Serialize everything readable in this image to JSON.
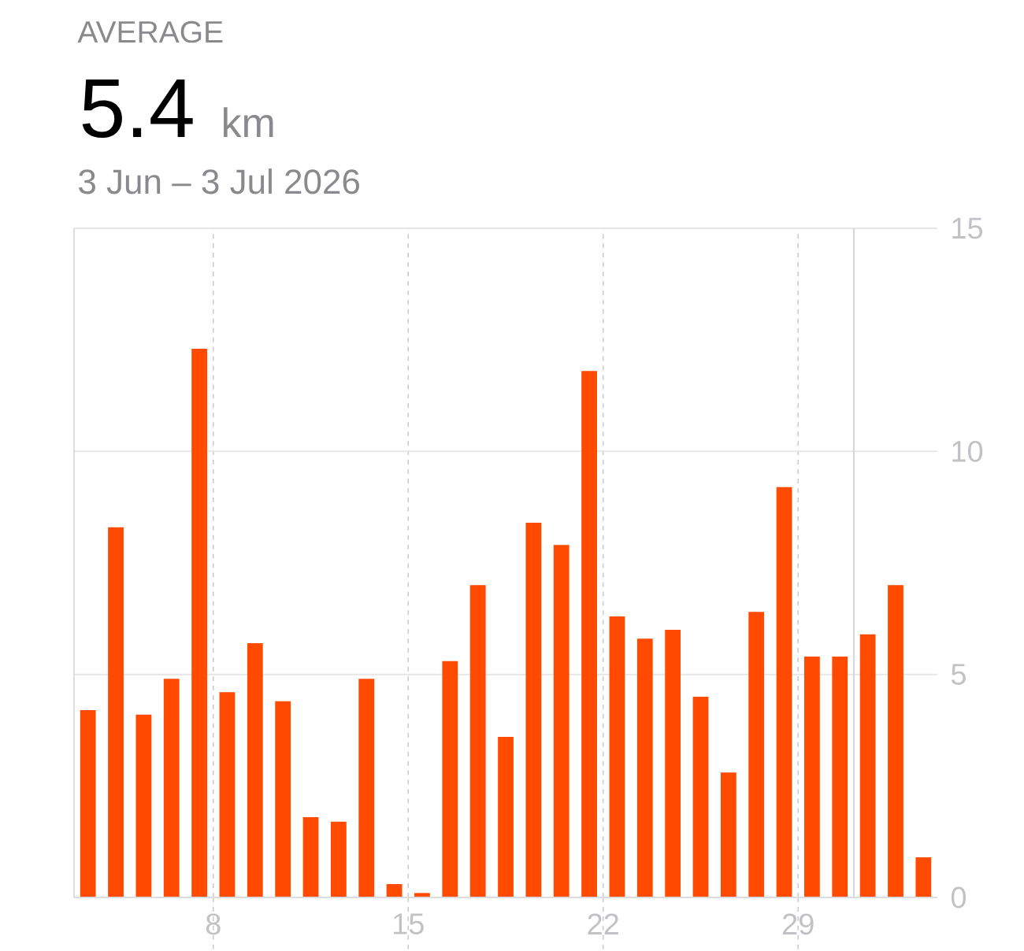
{
  "chart_data": {
    "type": "bar",
    "title": "AVERAGE",
    "subtitle": "3 Jun – 3 Jul 2026",
    "annotations": [
      "5.4",
      "km"
    ],
    "x": [
      "2026-06-03",
      "2026-06-04",
      "2026-06-05",
      "2026-06-06",
      "2026-06-07",
      "2026-06-08",
      "2026-06-09",
      "2026-06-10",
      "2026-06-11",
      "2026-06-12",
      "2026-06-13",
      "2026-06-14",
      "2026-06-15",
      "2026-06-16",
      "2026-06-17",
      "2026-06-18",
      "2026-06-19",
      "2026-06-20",
      "2026-06-21",
      "2026-06-22",
      "2026-06-23",
      "2026-06-24",
      "2026-06-25",
      "2026-06-26",
      "2026-06-27",
      "2026-06-28",
      "2026-06-29",
      "2026-06-30",
      "2026-07-01",
      "2026-07-02",
      "2026-07-03"
    ],
    "values": [
      4.2,
      8.3,
      4.1,
      4.9,
      12.3,
      4.6,
      5.7,
      4.4,
      1.8,
      1.7,
      4.9,
      0.3,
      0.1,
      5.3,
      7.0,
      3.6,
      8.4,
      7.9,
      11.8,
      6.3,
      5.8,
      6.0,
      4.5,
      2.8,
      6.4,
      9.2,
      5.4,
      5.4,
      5.9,
      7.0,
      0.9
    ],
    "color": "#ff4a00",
    "xlim": [
      "2026-06-02T12:00",
      "2026-07-03T12:00"
    ],
    "xticks": [
      {
        "value": "2026-06-07T12:00",
        "label": "8"
      },
      {
        "value": "2026-06-14T12:00",
        "label": "15"
      },
      {
        "value": "2026-06-21T12:00",
        "label": "22"
      },
      {
        "value": "2026-06-28T12:00",
        "label": "29"
      }
    ],
    "ylim": [
      0,
      15
    ],
    "yticks": [
      0,
      5,
      10,
      15
    ],
    "grid": true,
    "ref_lines": [
      {
        "axis": "x",
        "value": "2026-06-30T12:00",
        "color": "#d6d6d8"
      }
    ]
  }
}
